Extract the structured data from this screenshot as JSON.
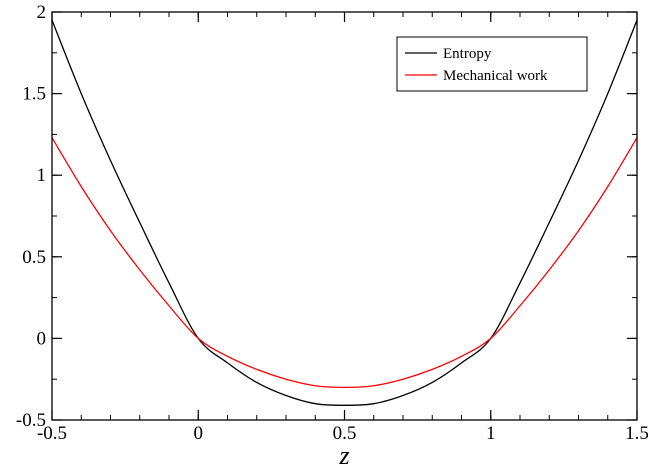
{
  "chart_data": {
    "type": "line",
    "xlabel": "z",
    "ylabel": "",
    "xlim": [
      -0.5,
      1.5
    ],
    "ylim": [
      -0.5,
      2
    ],
    "xticks": [
      -0.5,
      0,
      0.5,
      1,
      1.5
    ],
    "xtick_labels": [
      "-0.5",
      "0",
      "0.5",
      "1",
      "1.5"
    ],
    "yticks": [
      -0.5,
      0,
      0.5,
      1,
      1.5,
      2
    ],
    "ytick_labels": [
      "-0.5",
      "0",
      "0.5",
      "1",
      "1.5",
      "2"
    ],
    "x_minor_step": 0.1,
    "y_minor_step": 0.25,
    "grid": false,
    "legend_position": "top-right",
    "series": [
      {
        "name": "Entropy",
        "color": "#000000",
        "x": [
          -0.5,
          -0.4,
          -0.3,
          -0.2,
          -0.1,
          0,
          0.1,
          0.2,
          0.3,
          0.4,
          0.5,
          0.6,
          0.7,
          0.8,
          0.9,
          1,
          1.1,
          1.2,
          1.3,
          1.4,
          1.5
        ],
        "y": [
          1.95,
          1.5,
          1.09,
          0.71,
          0.34,
          0.0,
          -0.15,
          -0.27,
          -0.35,
          -0.4,
          -0.41,
          -0.4,
          -0.35,
          -0.27,
          -0.15,
          0.0,
          0.34,
          0.71,
          1.09,
          1.5,
          1.95
        ]
      },
      {
        "name": "Mechanical work",
        "color": "#ff0000",
        "x": [
          -0.5,
          -0.4,
          -0.3,
          -0.2,
          -0.1,
          0,
          0.1,
          0.2,
          0.3,
          0.4,
          0.5,
          0.6,
          0.7,
          0.8,
          0.9,
          1,
          1.1,
          1.2,
          1.3,
          1.4,
          1.5
        ],
        "y": [
          1.23,
          0.93,
          0.66,
          0.42,
          0.2,
          0.0,
          -0.11,
          -0.19,
          -0.25,
          -0.29,
          -0.3,
          -0.29,
          -0.25,
          -0.19,
          -0.11,
          0.0,
          0.2,
          0.42,
          0.66,
          0.93,
          1.23
        ]
      }
    ]
  }
}
